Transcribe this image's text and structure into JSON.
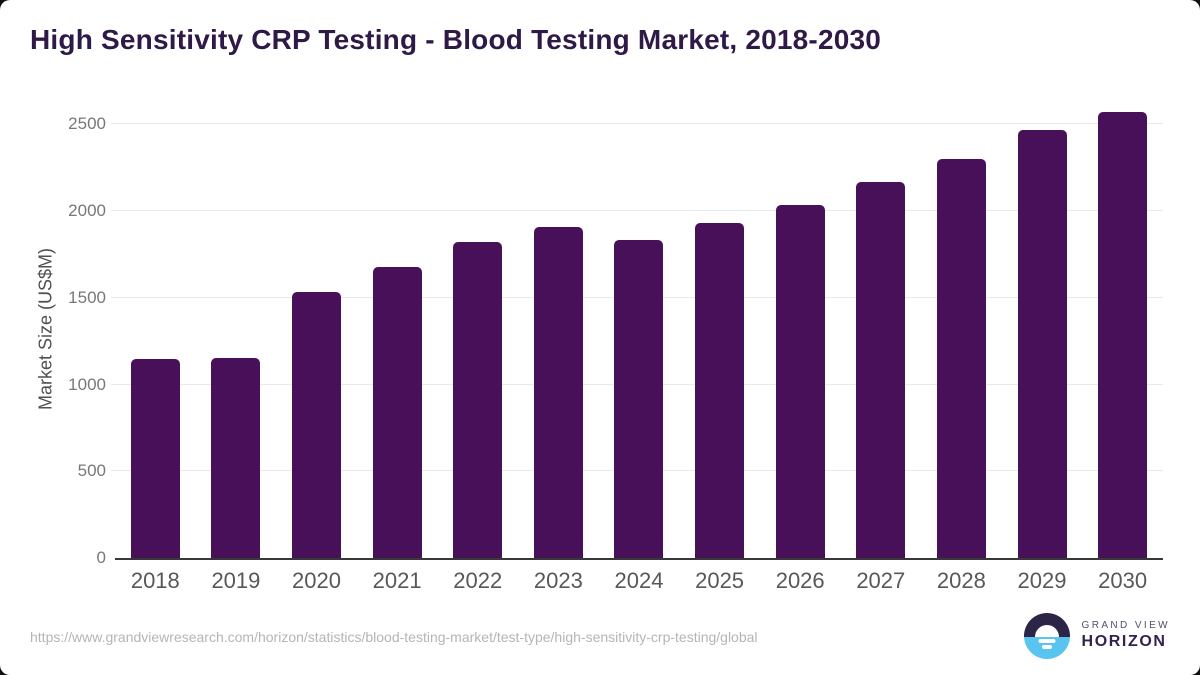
{
  "window": {
    "background": "#101010",
    "card_background": "#ffffff"
  },
  "header": {
    "title": "High Sensitivity CRP Testing - Blood Testing Market, 2018-2030",
    "title_color": "#2f1a47"
  },
  "chart_data": {
    "type": "bar",
    "title": "High Sensitivity CRP Testing - Blood Testing Market, 2018-2030",
    "categories": [
      "2018",
      "2019",
      "2020",
      "2021",
      "2022",
      "2023",
      "2024",
      "2025",
      "2026",
      "2027",
      "2028",
      "2029",
      "2030"
    ],
    "values": [
      1145,
      1155,
      1535,
      1675,
      1820,
      1910,
      1835,
      1930,
      2035,
      2165,
      2300,
      2465,
      2570
    ],
    "xlabel": "",
    "ylabel": "Market Size (US$M)",
    "ylim": [
      0,
      2640
    ],
    "yticks": [
      0,
      500,
      1000,
      1500,
      2000,
      2500
    ],
    "grid": true,
    "legend": "none",
    "bar_color": "#471059",
    "grid_color": "#e9e9e9",
    "axis_line_color": "#38383a",
    "y_tick_label_color": "#787878",
    "x_tick_label_color": "#58585b"
  },
  "footer": {
    "source_url": "https://www.grandviewresearch.com/horizon/statistics/blood-testing-market/test-type/high-sensitivity-crp-testing/global",
    "logo": {
      "line1": "GRAND VIEW",
      "line2": "HORIZON",
      "icon": "horizon-sun-icon",
      "icon_dark_color": "#2d2547",
      "icon_blue_color": "#5ac4f0"
    }
  }
}
